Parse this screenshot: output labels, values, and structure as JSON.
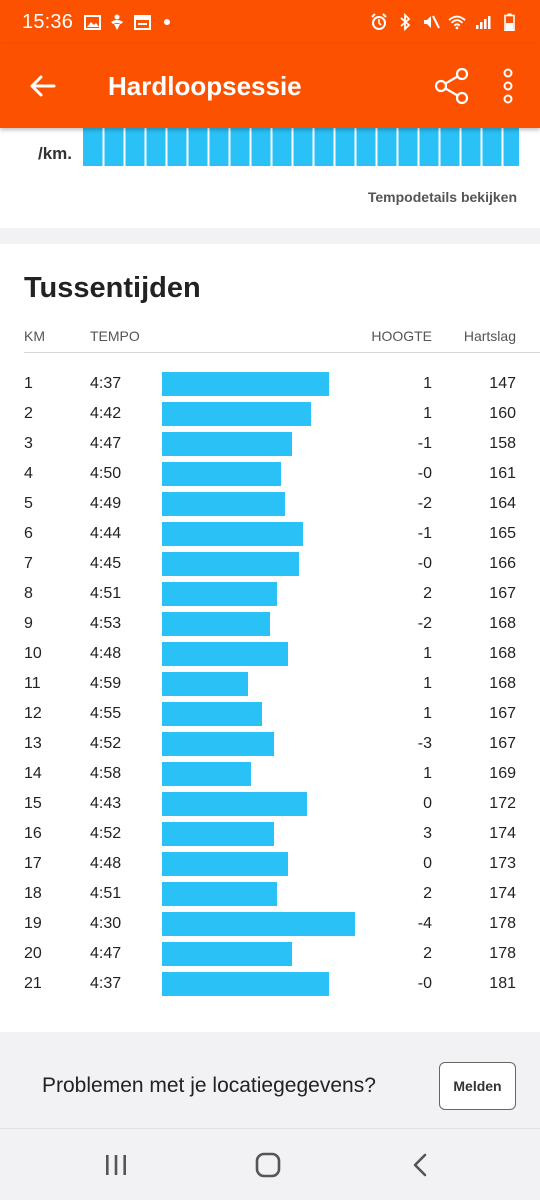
{
  "status_bar": {
    "time": "15:36",
    "icons": [
      "image-icon",
      "accessibility-icon",
      "calendar-icon",
      "dot-icon",
      "alarm-icon",
      "bluetooth-icon",
      "mute-icon",
      "wifi-icon",
      "signal-icon",
      "battery-icon"
    ]
  },
  "app_bar": {
    "title": "Hardloopsessie",
    "back_icon": "arrow-left-icon",
    "share_icon": "share-icon",
    "more_icon": "more-vertical-icon"
  },
  "pace_card": {
    "unit_label": "/km.",
    "details_link": "Tempodetails bekijken"
  },
  "splits": {
    "title": "Tussentijden",
    "headers": {
      "km": "KM",
      "pace": "TEMPO",
      "elevation": "HOOGTE",
      "heart_rate": "Hartslag"
    },
    "rows": [
      {
        "km": "1",
        "pace": "4:37",
        "elevation": "1",
        "heart_rate": "147"
      },
      {
        "km": "2",
        "pace": "4:42",
        "elevation": "1",
        "heart_rate": "160"
      },
      {
        "km": "3",
        "pace": "4:47",
        "elevation": "-1",
        "heart_rate": "158"
      },
      {
        "km": "4",
        "pace": "4:50",
        "elevation": "-0",
        "heart_rate": "161"
      },
      {
        "km": "5",
        "pace": "4:49",
        "elevation": "-2",
        "heart_rate": "164"
      },
      {
        "km": "6",
        "pace": "4:44",
        "elevation": "-1",
        "heart_rate": "165"
      },
      {
        "km": "7",
        "pace": "4:45",
        "elevation": "-0",
        "heart_rate": "166"
      },
      {
        "km": "8",
        "pace": "4:51",
        "elevation": "2",
        "heart_rate": "167"
      },
      {
        "km": "9",
        "pace": "4:53",
        "elevation": "-2",
        "heart_rate": "168"
      },
      {
        "km": "10",
        "pace": "4:48",
        "elevation": "1",
        "heart_rate": "168"
      },
      {
        "km": "11",
        "pace": "4:59",
        "elevation": "1",
        "heart_rate": "168"
      },
      {
        "km": "12",
        "pace": "4:55",
        "elevation": "1",
        "heart_rate": "167"
      },
      {
        "km": "13",
        "pace": "4:52",
        "elevation": "-3",
        "heart_rate": "167"
      },
      {
        "km": "14",
        "pace": "4:58",
        "elevation": "1",
        "heart_rate": "169"
      },
      {
        "km": "15",
        "pace": "4:43",
        "elevation": "0",
        "heart_rate": "172"
      },
      {
        "km": "16",
        "pace": "4:52",
        "elevation": "3",
        "heart_rate": "174"
      },
      {
        "km": "17",
        "pace": "4:48",
        "elevation": "0",
        "heart_rate": "173"
      },
      {
        "km": "18",
        "pace": "4:51",
        "elevation": "2",
        "heart_rate": "174"
      },
      {
        "km": "19",
        "pace": "4:30",
        "elevation": "-4",
        "heart_rate": "178"
      },
      {
        "km": "20",
        "pace": "4:47",
        "elevation": "2",
        "heart_rate": "178"
      },
      {
        "km": "21",
        "pace": "4:37",
        "elevation": "-0",
        "heart_rate": "181"
      }
    ]
  },
  "report": {
    "text": "Problemen met je locatiegegevens?",
    "button_label": "Melden"
  },
  "nav_bar": {
    "icons": [
      "recent-apps-icon",
      "home-icon",
      "back-icon"
    ]
  },
  "colors": {
    "brand": "#fc5200",
    "bar": "#29c1f6"
  }
}
